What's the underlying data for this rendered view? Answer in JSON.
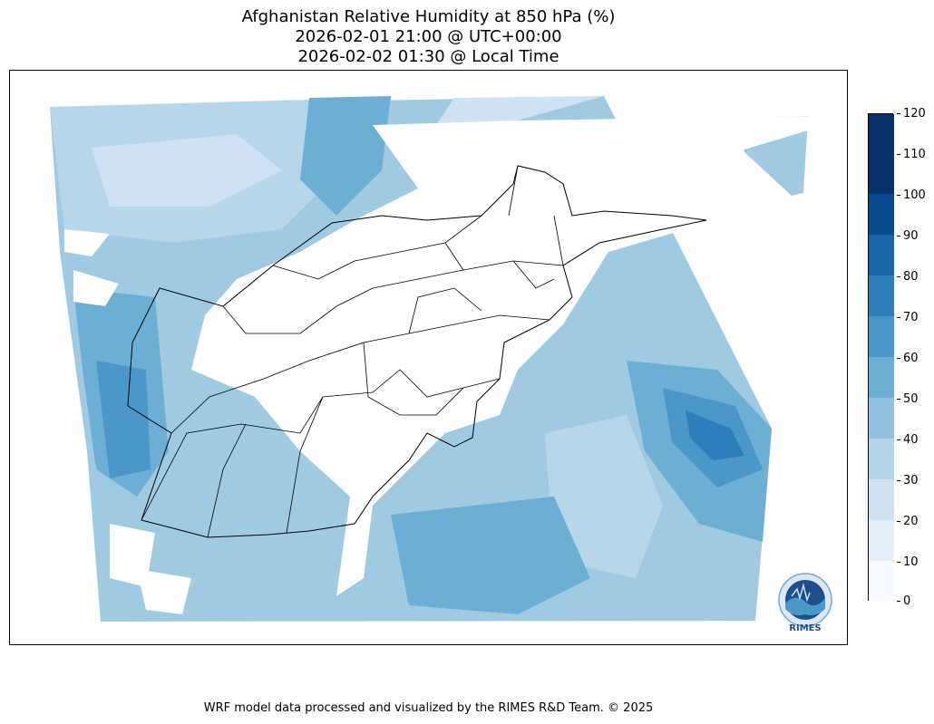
{
  "header": {
    "title_line1": "Afghanistan Relative Humidity at 850 hPa (%)",
    "title_line2": "2026-02-01 21:00 @ UTC+00:00",
    "title_line3": "2026-02-02 01:30 @ Local Time"
  },
  "colorbar": {
    "levels": [
      "0",
      "10",
      "20",
      "30",
      "40",
      "50",
      "60",
      "70",
      "80",
      "90",
      "100",
      "110",
      "120"
    ],
    "colors": [
      "#f7fbff",
      "#e3eef9",
      "#cfe1f2",
      "#b5d4e9",
      "#93c3df",
      "#6daed5",
      "#4b97c9",
      "#2f7ebc",
      "#1864aa",
      "#0a4a90",
      "#08306b",
      "#08306b"
    ]
  },
  "logo": {
    "text": "RIMES"
  },
  "footer": {
    "credit": "WRF model data processed and visualized by the RIMES R&D Team. © 2025"
  }
}
